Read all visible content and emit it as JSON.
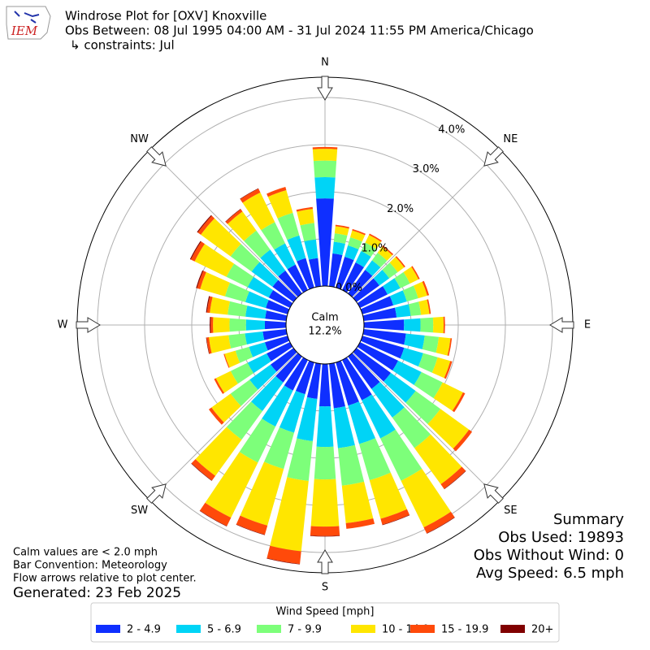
{
  "chart_data": {
    "type": "windrose",
    "title": "Windrose Plot for [OXV] Knoxville",
    "subtitle": "Obs Between: 08 Jul 1995 04:00 AM - 31 Jul 2024 11:55 PM America/Chicago",
    "constraints": "↳ constraints: Jul",
    "logo_text": "IEM",
    "categories": [
      null,
      null,
      null,
      null,
      null,
      null,
      null,
      null,
      null,
      null,
      null,
      null,
      null,
      null,
      null,
      null,
      null,
      null,
      null,
      null,
      null,
      null,
      null,
      null,
      null,
      null,
      null,
      null,
      null,
      null,
      null,
      null,
      null,
      null,
      null,
      null
    ],
    "compass": [
      "N",
      "NE",
      "E",
      "SE",
      "S",
      "SW",
      "W",
      "NW"
    ],
    "calm_label": "Calm",
    "calm_value": "12.2%",
    "rlim": [
      0,
      4.43
    ],
    "rticks": [
      {
        "value": 0,
        "label": "0.0%"
      },
      {
        "value": 1,
        "label": "1.0%"
      },
      {
        "value": 2,
        "label": "2.0%"
      },
      {
        "value": 3,
        "label": "3.0%"
      },
      {
        "value": 4,
        "label": "4.0%"
      }
    ],
    "grid": true,
    "legend_title": "Wind Speed [mph]",
    "series": [
      {
        "name": "2 - 4.9",
        "color": "#0f2fff",
        "values": [
          1.86,
          0.7,
          0.68,
          0.65,
          0.62,
          0.6,
          0.65,
          0.68,
          0.7,
          0.85,
          0.9,
          0.92,
          0.9,
          0.9,
          0.85,
          0.95,
          0.95,
          0.95,
          0.9,
          0.75,
          0.7,
          0.72,
          0.68,
          0.6,
          0.55,
          0.5,
          0.5,
          0.45,
          0.45,
          0.48,
          0.5,
          0.55,
          0.6,
          0.6,
          0.65,
          0.6
        ]
      },
      {
        "name": "5 - 6.9",
        "color": "#00d4f6",
        "values": [
          0.45,
          0.25,
          0.25,
          0.27,
          0.25,
          0.26,
          0.3,
          0.3,
          0.3,
          0.35,
          0.4,
          0.42,
          0.55,
          0.65,
          0.75,
          0.9,
          0.85,
          0.85,
          0.86,
          0.9,
          0.85,
          0.85,
          0.75,
          0.55,
          0.45,
          0.35,
          0.38,
          0.4,
          0.42,
          0.45,
          0.5,
          0.55,
          0.55,
          0.5,
          0.5,
          0.4
        ]
      },
      {
        "name": "7 - 9.9",
        "color": "#7dff7a",
        "values": [
          0.35,
          0.18,
          0.18,
          0.2,
          0.2,
          0.22,
          0.23,
          0.25,
          0.22,
          0.27,
          0.3,
          0.32,
          0.5,
          0.65,
          0.8,
          1.0,
          0.8,
          0.8,
          0.69,
          0.85,
          0.8,
          0.85,
          0.75,
          0.5,
          0.4,
          0.3,
          0.35,
          0.35,
          0.38,
          0.45,
          0.5,
          0.55,
          0.5,
          0.5,
          0.5,
          0.35
        ]
      },
      {
        "name": "10 - 14.9",
        "color": "#ffe600",
        "values": [
          0.25,
          0.15,
          0.15,
          0.18,
          0.16,
          0.17,
          0.2,
          0.2,
          0.18,
          0.22,
          0.25,
          0.28,
          0.48,
          0.75,
          0.95,
          1.1,
          0.85,
          0.8,
          1.0,
          1.5,
          1.25,
          1.3,
          0.95,
          0.5,
          0.35,
          0.24,
          0.42,
          0.35,
          0.38,
          0.55,
          0.75,
          0.78,
          0.5,
          0.7,
          0.5,
          0.3
        ]
      },
      {
        "name": "15 - 19.9",
        "color": "#ff4a0a",
        "values": [
          0.04,
          0.03,
          0.03,
          0.03,
          0.03,
          0.03,
          0.03,
          0.04,
          0.03,
          0.03,
          0.03,
          0.04,
          0.05,
          0.08,
          0.12,
          0.14,
          0.13,
          0.12,
          0.2,
          0.27,
          0.2,
          0.2,
          0.12,
          0.07,
          0.04,
          0.02,
          0.05,
          0.05,
          0.06,
          0.07,
          0.09,
          0.08,
          0.06,
          0.09,
          0.07,
          0.04
        ]
      },
      {
        "name": "20+",
        "color": "#800000",
        "values": [
          0,
          0,
          0,
          0,
          0,
          0,
          0,
          0,
          0,
          0,
          0,
          0,
          0,
          0,
          0.01,
          0.01,
          0.01,
          0,
          0.01,
          0.01,
          0.01,
          0.01,
          0.01,
          0,
          0,
          0,
          0.01,
          0.02,
          0.02,
          0.02,
          0.02,
          0.02,
          0.01,
          0.01,
          0,
          0
        ]
      }
    ],
    "notes": [
      "Calm values are < 2.0 mph",
      "Bar Convention: Meteorology",
      "Flow arrows relative to plot center."
    ],
    "generated": "Generated: 23 Feb 2025",
    "summary": [
      "Summary",
      "Obs Used: 19893",
      "Obs Without Wind: 0",
      "Avg Speed: 6.5 mph"
    ]
  }
}
